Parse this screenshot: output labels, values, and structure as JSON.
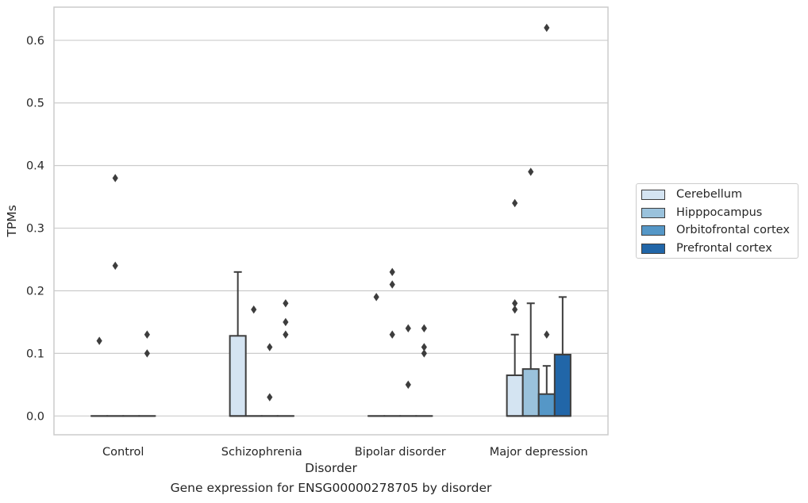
{
  "chart_data": {
    "type": "box",
    "xlabel": "Disorder",
    "ylabel": "TPMs",
    "ylim": [
      -0.03,
      0.653
    ],
    "yticks": [
      0.0,
      0.1,
      0.2,
      0.3,
      0.4,
      0.5,
      0.6
    ],
    "ytick_labels": [
      "0.0",
      "0.1",
      "0.2",
      "0.3",
      "0.4",
      "0.5",
      "0.6"
    ],
    "grid": "horizontal",
    "legend_position": "right",
    "categories": [
      "Control",
      "Schizophrenia",
      "Bipolar disorder",
      "Major depression"
    ],
    "series": [
      {
        "name": "Cerebellum",
        "color": "#d4e4f2",
        "boxes": [
          {
            "q1": 0,
            "median": 0,
            "q3": 0,
            "whisker_low": 0,
            "whisker_high": 0,
            "outliers": [
              0.12
            ]
          },
          {
            "q1": 0,
            "median": 0,
            "q3": 0.128,
            "whisker_low": 0,
            "whisker_high": 0.23,
            "outliers": []
          },
          {
            "q1": 0,
            "median": 0,
            "q3": 0,
            "whisker_low": 0,
            "whisker_high": 0,
            "outliers": [
              0.19
            ]
          },
          {
            "q1": 0,
            "median": 0,
            "q3": 0.065,
            "whisker_low": 0,
            "whisker_high": 0.13,
            "outliers": [
              0.18,
              0.17,
              0.34
            ]
          }
        ]
      },
      {
        "name": "Hipppocampus",
        "color": "#9ac2dc",
        "boxes": [
          {
            "q1": 0,
            "median": 0,
            "q3": 0,
            "whisker_low": 0,
            "whisker_high": 0,
            "outliers": [
              0.38,
              0.24
            ]
          },
          {
            "q1": 0,
            "median": 0,
            "q3": 0,
            "whisker_low": 0,
            "whisker_high": 0,
            "outliers": [
              0.17
            ]
          },
          {
            "q1": 0,
            "median": 0,
            "q3": 0,
            "whisker_low": 0,
            "whisker_high": 0,
            "outliers": [
              0.23,
              0.21,
              0.13
            ]
          },
          {
            "q1": 0,
            "median": 0,
            "q3": 0.075,
            "whisker_low": 0,
            "whisker_high": 0.18,
            "outliers": [
              0.39
            ]
          }
        ]
      },
      {
        "name": "Orbitofrontal cortex",
        "color": "#5597c7",
        "boxes": [
          {
            "q1": 0,
            "median": 0,
            "q3": 0,
            "whisker_low": 0,
            "whisker_high": 0,
            "outliers": []
          },
          {
            "q1": 0,
            "median": 0,
            "q3": 0,
            "whisker_low": 0,
            "whisker_high": 0,
            "outliers": [
              0.11,
              0.03
            ]
          },
          {
            "q1": 0,
            "median": 0,
            "q3": 0,
            "whisker_low": 0,
            "whisker_high": 0,
            "outliers": [
              0.14,
              0.05
            ]
          },
          {
            "q1": 0,
            "median": 0,
            "q3": 0.035,
            "whisker_low": 0,
            "whisker_high": 0.08,
            "outliers": [
              0.62,
              0.13
            ]
          }
        ]
      },
      {
        "name": "Prefrontal cortex",
        "color": "#2166a8",
        "boxes": [
          {
            "q1": 0,
            "median": 0,
            "q3": 0,
            "whisker_low": 0,
            "whisker_high": 0,
            "outliers": [
              0.13,
              0.1
            ]
          },
          {
            "q1": 0,
            "median": 0,
            "q3": 0,
            "whisker_low": 0,
            "whisker_high": 0,
            "outliers": [
              0.18,
              0.15,
              0.13
            ]
          },
          {
            "q1": 0,
            "median": 0,
            "q3": 0,
            "whisker_low": 0,
            "whisker_high": 0,
            "outliers": [
              0.14,
              0.11,
              0.1
            ]
          },
          {
            "q1": 0,
            "median": 0,
            "q3": 0.098,
            "whisker_low": 0,
            "whisker_high": 0.19,
            "outliers": []
          }
        ]
      }
    ]
  },
  "caption": "Gene expression for ENSG00000278705 by disorder",
  "colors": {
    "grid": "#cccccc",
    "axes_edge": "#cccccc",
    "box_edge": "#3d3d3d",
    "text": "#262626"
  }
}
